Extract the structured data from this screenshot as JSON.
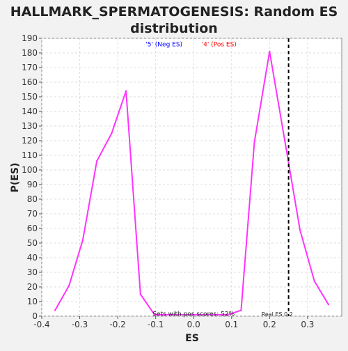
{
  "chart_data": {
    "type": "line",
    "title_lines": [
      "HALLMARK_SPERMATOGENESIS: Random ES",
      "distribution"
    ],
    "xlabel": "ES",
    "ylabel": "P(ES)",
    "xlim": [
      -0.4,
      0.39
    ],
    "ylim": [
      0,
      190
    ],
    "x_ticks": [
      -0.4,
      -0.3,
      -0.2,
      -0.1,
      0.0,
      0.1,
      0.2,
      0.3
    ],
    "x_tick_labels": [
      "-0.4",
      "-0.3",
      "-0.2",
      "-0.1",
      "0.0",
      "0.1",
      "0.2",
      "0.3"
    ],
    "y_ticks": [
      0,
      10,
      20,
      30,
      40,
      50,
      60,
      70,
      80,
      90,
      100,
      110,
      120,
      130,
      140,
      150,
      160,
      170,
      180,
      190
    ],
    "grid": true,
    "series": [
      {
        "color": "#ff33ff",
        "x": [
          -0.365,
          -0.328,
          -0.292,
          -0.255,
          -0.216,
          -0.178,
          -0.14,
          -0.103,
          0.09,
          0.125,
          0.16,
          0.2,
          0.24,
          0.28,
          0.318,
          0.355
        ],
        "y": [
          4,
          21,
          52,
          106,
          125,
          154,
          15,
          1,
          1,
          4,
          119,
          181,
          120,
          59,
          24,
          8
        ]
      }
    ],
    "real_es_line": {
      "x": 0.25,
      "color": "#000000",
      "style": "dashed"
    },
    "annotations": {
      "neg_label": "'5' (Neg ES)",
      "neg_color": "#0000ff",
      "pos_label": "'4' (Pos ES)",
      "pos_color": "#ff0000",
      "pos_scores": "Sets with pos scores: 52%",
      "real_es": "Real ES 0.2"
    }
  }
}
